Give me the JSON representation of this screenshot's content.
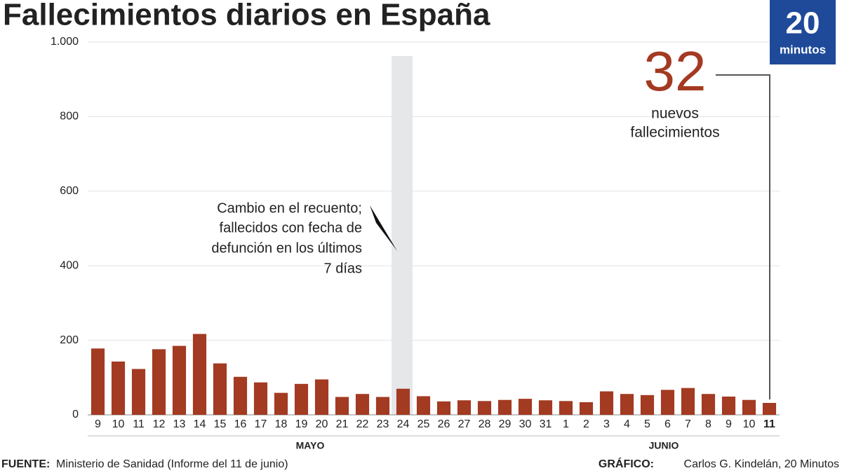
{
  "chart_data": {
    "type": "bar",
    "title": "Fallecimientos diarios en España",
    "categories": [
      "9",
      "10",
      "11",
      "12",
      "13",
      "14",
      "15",
      "16",
      "17",
      "18",
      "19",
      "20",
      "21",
      "22",
      "23",
      "24",
      "25",
      "26",
      "27",
      "28",
      "29",
      "30",
      "31",
      "1",
      "2",
      "3",
      "4",
      "5",
      "6",
      "7",
      "8",
      "9",
      "10",
      "11"
    ],
    "values": [
      178,
      143,
      123,
      176,
      185,
      217,
      138,
      102,
      87,
      59,
      83,
      95,
      48,
      56,
      48,
      70,
      50,
      36,
      39,
      37,
      40,
      43,
      39,
      37,
      34,
      63,
      56,
      53,
      67,
      72,
      56,
      49,
      40,
      32
    ],
    "color": "#a33a22",
    "ylim": [
      0,
      1000
    ],
    "yticks": [
      0,
      200,
      400,
      600,
      800,
      {
        "value": 1000,
        "label": "1.000"
      }
    ],
    "grid": true,
    "month_labels": [
      "MAYO",
      "JUNIO"
    ],
    "annotations": {
      "big_number": "32",
      "big_number_text": [
        "nuevos",
        "fallecimientos"
      ],
      "change_note": [
        "Cambio en el recuento;",
        "fallecidos con fecha de",
        "defunción en los últimos",
        "7 días"
      ]
    },
    "logo": [
      "20",
      "minutos"
    ],
    "source": {
      "label": "FUENTE:",
      "text": "Ministerio de Sanidad (Informe del 11 de junio)"
    },
    "credit": {
      "label": "GRÁFICO:",
      "text": "Carlos G. Kindelán, 20 Minutos"
    }
  }
}
